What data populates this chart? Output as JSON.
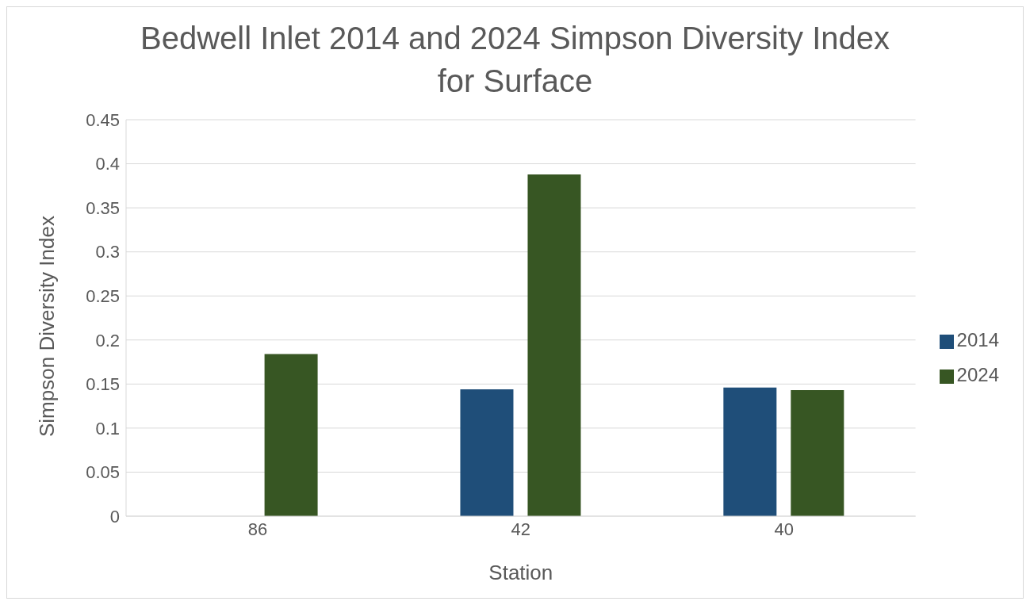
{
  "chart_data": {
    "type": "bar",
    "title": "Bedwell Inlet 2014 and 2024 Simpson Diversity Index for Surface",
    "xlabel": "Station",
    "ylabel": "Simpson Diversity Index",
    "categories": [
      "86",
      "42",
      "40"
    ],
    "series": [
      {
        "name": "2014",
        "color": "#1f4e79",
        "values": [
          null,
          0.144,
          0.146
        ]
      },
      {
        "name": "2024",
        "color": "#375623",
        "values": [
          0.184,
          0.388,
          0.143
        ]
      }
    ],
    "ylim": [
      0,
      0.45
    ],
    "yticks": [
      0,
      0.05,
      0.1,
      0.15,
      0.2,
      0.25,
      0.3,
      0.35,
      0.4,
      0.45
    ],
    "grid": "y",
    "legend": "right"
  }
}
